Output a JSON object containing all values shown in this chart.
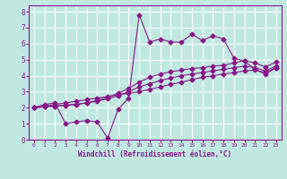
{
  "bg_color": "#c0e8e0",
  "grid_color": "#ffffff",
  "line_color": "#881888",
  "xlabel": "Windchill (Refroidissement éolien,°C)",
  "xlabel_color": "#881888",
  "xtick_color": "#881888",
  "ytick_color": "#881888",
  "xlim": [
    -0.5,
    23.5
  ],
  "ylim": [
    0,
    8.4
  ],
  "xticks": [
    0,
    1,
    2,
    3,
    4,
    5,
    6,
    7,
    8,
    9,
    10,
    11,
    12,
    13,
    14,
    15,
    16,
    17,
    18,
    19,
    20,
    21,
    22,
    23
  ],
  "yticks": [
    0,
    1,
    2,
    3,
    4,
    5,
    6,
    7,
    8
  ],
  "line1_x": [
    0,
    1,
    2,
    3,
    4,
    5,
    6,
    7,
    8,
    9,
    10,
    11,
    12,
    13,
    14,
    15,
    16,
    17,
    18,
    19,
    20,
    21,
    22,
    23
  ],
  "line1_y": [
    2.0,
    2.1,
    2.2,
    2.3,
    2.4,
    2.5,
    2.6,
    2.7,
    2.8,
    2.9,
    3.0,
    3.15,
    3.3,
    3.45,
    3.6,
    3.75,
    3.9,
    4.0,
    4.1,
    4.2,
    4.3,
    4.35,
    4.2,
    4.5
  ],
  "line2_x": [
    0,
    1,
    2,
    3,
    4,
    5,
    6,
    7,
    8,
    9,
    10,
    11,
    12,
    13,
    14,
    15,
    16,
    17,
    18,
    19,
    20,
    21,
    22,
    23
  ],
  "line2_y": [
    2.0,
    2.05,
    2.1,
    2.15,
    2.2,
    2.3,
    2.4,
    2.55,
    2.75,
    3.0,
    3.3,
    3.5,
    3.7,
    3.85,
    4.0,
    4.1,
    4.2,
    4.3,
    4.4,
    4.5,
    4.6,
    4.5,
    4.3,
    4.6
  ],
  "line3_x": [
    0,
    1,
    2,
    3,
    4,
    5,
    6,
    7,
    8,
    9,
    10,
    11,
    12,
    13,
    14,
    15,
    16,
    17,
    18,
    19,
    20,
    21,
    22,
    23
  ],
  "line3_y": [
    2.0,
    2.05,
    2.1,
    2.15,
    2.2,
    2.3,
    2.45,
    2.65,
    2.9,
    3.2,
    3.6,
    3.9,
    4.1,
    4.25,
    4.35,
    4.45,
    4.5,
    4.6,
    4.65,
    4.8,
    4.95,
    4.8,
    4.55,
    4.85
  ],
  "line4_x": [
    0,
    1,
    2,
    3,
    4,
    5,
    6,
    7,
    8,
    9,
    10,
    11,
    12,
    13,
    14,
    15,
    16,
    17,
    18,
    19,
    20,
    21,
    22,
    23
  ],
  "line4_y": [
    2.0,
    2.2,
    2.3,
    1.0,
    1.1,
    1.2,
    1.1,
    0.1,
    1.9,
    2.6,
    7.8,
    6.1,
    6.3,
    6.1,
    6.1,
    6.6,
    6.2,
    6.5,
    6.3,
    5.1,
    4.9,
    4.4,
    4.1,
    4.5
  ],
  "marker": "D",
  "markersize": 2.5,
  "linewidth": 0.8
}
